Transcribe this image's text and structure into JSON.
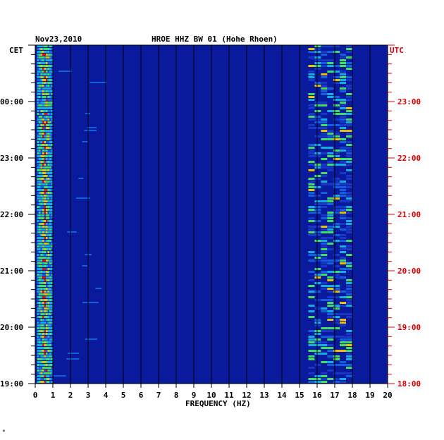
{
  "chart_data": {
    "type": "heatmap",
    "date": "Nov23,2010",
    "title": "HROE HHZ BW 01 (Hohe Rhoen)",
    "left_axis_label": "CET",
    "right_axis_label": "UTC",
    "xlabel": "FREQUENCY (HZ)",
    "xlim": [
      0,
      20
    ],
    "x_ticks": [
      "0",
      "1",
      "2",
      "3",
      "4",
      "5",
      "6",
      "7",
      "8",
      "9",
      "10",
      "11",
      "12",
      "13",
      "14",
      "15",
      "16",
      "17",
      "18",
      "19",
      "20"
    ],
    "cet_ticks": [
      "00:00",
      "23:00",
      "22:00",
      "21:00",
      "20:00",
      "19:00"
    ],
    "utc_ticks": [
      "23:00",
      "22:00",
      "21:00",
      "20:00",
      "19:00",
      "18:00"
    ],
    "background_color": "#0a1a9c",
    "accent_colors": {
      "utc": "#dd0000",
      "grid": "#000000"
    },
    "bands": [
      {
        "name": "low-frequency band",
        "from_hz": 0.1,
        "to_hz": 1.0,
        "intensity": "high"
      },
      {
        "name": "high-frequency band",
        "from_hz": 15.5,
        "to_hz": 18.0,
        "intensity": "medium"
      }
    ],
    "footer_mark": "*"
  }
}
